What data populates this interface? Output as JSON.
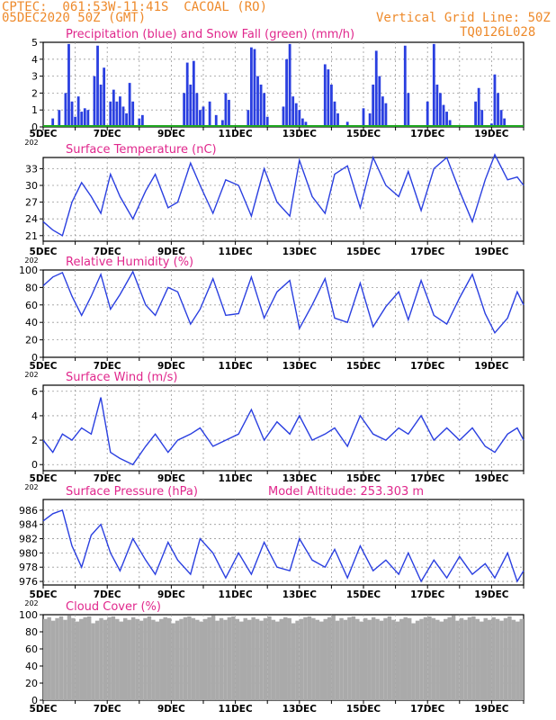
{
  "header": {
    "line1": "CPTEC:  061:53W-11:41S  CACOAL (RO)",
    "line2": "05DEC2020 50Z (GMT)",
    "grid_note": "Vertical Grid Line: 50Z",
    "code": "TQ0126L028"
  },
  "x_axis": {
    "labels": [
      "5DEC",
      "7DEC",
      "9DEC",
      "11DEC",
      "13DEC",
      "15DEC",
      "17DEC",
      "19DEC"
    ],
    "label_days": [
      0,
      2,
      4,
      6,
      8,
      10,
      12,
      14
    ],
    "range_days": [
      0,
      15
    ],
    "stub": "202"
  },
  "colors": {
    "header": "#ee8a2b",
    "title": "#e0278c",
    "series": "#2a3fe0",
    "snow": "#1fa81f",
    "cloud": "#aaaaaa",
    "grid": "#9a9a9a"
  },
  "chart_data": [
    {
      "type": "bar",
      "title": "Precipitation (blue) and Snow Fall (green) (mm/h)",
      "ylim": [
        0,
        5
      ],
      "yticks": [
        0,
        1,
        2,
        3,
        4,
        5
      ],
      "series": [
        {
          "name": "Precipitation",
          "x": [
            0.3,
            0.5,
            0.7,
            0.8,
            0.9,
            1.0,
            1.1,
            1.2,
            1.3,
            1.4,
            1.6,
            1.7,
            1.8,
            1.9,
            2.1,
            2.2,
            2.3,
            2.4,
            2.5,
            2.6,
            2.7,
            2.8,
            3.0,
            3.1,
            4.4,
            4.5,
            4.6,
            4.7,
            4.8,
            4.9,
            5.0,
            5.2,
            5.4,
            5.6,
            5.7,
            5.8,
            6.4,
            6.5,
            6.6,
            6.7,
            6.8,
            6.9,
            7.0,
            7.5,
            7.6,
            7.7,
            7.8,
            7.9,
            8.0,
            8.1,
            8.2,
            8.8,
            8.9,
            9.0,
            9.1,
            9.2,
            9.5,
            10.0,
            10.2,
            10.3,
            10.4,
            10.5,
            10.6,
            10.7,
            11.3,
            11.4,
            12.0,
            12.2,
            12.3,
            12.4,
            12.5,
            12.6,
            12.7,
            13.5,
            13.6,
            13.7,
            14.0,
            14.1,
            14.2,
            14.3,
            14.4
          ],
          "values": [
            0.5,
            1.0,
            2.0,
            4.9,
            1.5,
            0.6,
            1.8,
            0.9,
            1.1,
            1.0,
            3.0,
            4.8,
            2.5,
            3.5,
            1.5,
            2.2,
            1.5,
            1.8,
            1.2,
            0.8,
            2.6,
            1.5,
            0.5,
            0.7,
            2.0,
            3.8,
            2.5,
            3.9,
            2.0,
            1.0,
            1.2,
            1.5,
            0.7,
            0.4,
            2.0,
            1.6,
            1.0,
            4.7,
            4.6,
            3.0,
            2.5,
            2.0,
            0.6,
            1.2,
            4.0,
            4.9,
            1.8,
            1.4,
            1.0,
            0.5,
            0.3,
            3.7,
            3.4,
            2.5,
            1.5,
            0.8,
            0.3,
            1.1,
            0.8,
            2.5,
            4.5,
            3.0,
            1.8,
            1.4,
            4.8,
            2.0,
            1.5,
            4.9,
            2.5,
            2.0,
            1.3,
            0.9,
            0.4,
            1.5,
            2.3,
            1.0,
            0.2,
            3.1,
            2.0,
            1.0,
            0.5
          ]
        },
        {
          "name": "Snow Fall",
          "x": [
            0,
            15
          ],
          "values": [
            0,
            0
          ]
        }
      ]
    },
    {
      "type": "line",
      "title": "Surface Temperature (nC)",
      "ylim": [
        20,
        35
      ],
      "yticks": [
        21,
        24,
        27,
        30,
        33
      ],
      "x": [
        0,
        0.3,
        0.6,
        0.9,
        1.2,
        1.5,
        1.8,
        2.1,
        2.4,
        2.8,
        3.2,
        3.5,
        3.9,
        4.2,
        4.6,
        4.9,
        5.3,
        5.7,
        6.1,
        6.5,
        6.9,
        7.3,
        7.7,
        8.0,
        8.4,
        8.8,
        9.1,
        9.5,
        9.9,
        10.3,
        10.7,
        11.1,
        11.4,
        11.8,
        12.2,
        12.6,
        13.0,
        13.4,
        13.8,
        14.1,
        14.5,
        14.8,
        15.0
      ],
      "series": [
        {
          "values": [
            23.5,
            22.0,
            21.0,
            27.0,
            30.5,
            28.0,
            25.0,
            32.0,
            28.0,
            24.0,
            29.0,
            32.0,
            26.0,
            27.0,
            34.0,
            30.0,
            25.0,
            31.0,
            30.0,
            24.5,
            33.0,
            27.0,
            24.5,
            34.5,
            28.0,
            25.0,
            32.0,
            33.5,
            26.0,
            35.0,
            30.0,
            28.0,
            32.5,
            25.5,
            33.0,
            35.0,
            29.0,
            23.5,
            31.0,
            35.5,
            31.0,
            31.5,
            30.0
          ]
        }
      ]
    },
    {
      "type": "line",
      "title": "Relative Humidity (%)",
      "ylim": [
        0,
        100
      ],
      "yticks": [
        0,
        20,
        40,
        60,
        80,
        100
      ],
      "x": [
        0,
        0.3,
        0.6,
        0.9,
        1.2,
        1.5,
        1.8,
        2.1,
        2.4,
        2.8,
        3.2,
        3.5,
        3.9,
        4.2,
        4.6,
        4.9,
        5.3,
        5.7,
        6.1,
        6.5,
        6.9,
        7.3,
        7.7,
        8.0,
        8.4,
        8.8,
        9.1,
        9.5,
        9.9,
        10.3,
        10.7,
        11.1,
        11.4,
        11.8,
        12.2,
        12.6,
        13.0,
        13.4,
        13.8,
        14.1,
        14.5,
        14.8,
        15.0
      ],
      "series": [
        {
          "values": [
            82.0,
            92.0,
            97.0,
            70.0,
            48.0,
            70.0,
            95.0,
            55.0,
            72.0,
            98.0,
            60.0,
            48.0,
            80.0,
            75.0,
            38.0,
            55.0,
            90.0,
            48.0,
            50.0,
            92.0,
            45.0,
            75.0,
            88.0,
            33.0,
            60.0,
            90.0,
            45.0,
            40.0,
            85.0,
            35.0,
            58.0,
            75.0,
            43.0,
            88.0,
            48.0,
            38.0,
            68.0,
            95.0,
            50.0,
            28.0,
            45.0,
            75.0,
            60.0
          ]
        }
      ]
    },
    {
      "type": "line",
      "title": "Surface Wind (m/s)",
      "ylim": [
        -0.5,
        6.5
      ],
      "yticks": [
        0,
        2,
        4,
        6
      ],
      "x": [
        0,
        0.3,
        0.6,
        0.9,
        1.2,
        1.5,
        1.8,
        2.1,
        2.4,
        2.8,
        3.2,
        3.5,
        3.9,
        4.2,
        4.6,
        4.9,
        5.3,
        5.7,
        6.1,
        6.5,
        6.9,
        7.3,
        7.7,
        8.0,
        8.4,
        8.8,
        9.1,
        9.5,
        9.9,
        10.3,
        10.7,
        11.1,
        11.4,
        11.8,
        12.2,
        12.6,
        13.0,
        13.4,
        13.8,
        14.1,
        14.5,
        14.8,
        15.0
      ],
      "series": [
        {
          "values": [
            2.0,
            1.0,
            2.5,
            2.0,
            3.0,
            2.5,
            5.5,
            1.0,
            0.5,
            0.0,
            1.5,
            2.5,
            1.0,
            2.0,
            2.5,
            3.0,
            1.5,
            2.0,
            2.5,
            4.5,
            2.0,
            3.5,
            2.5,
            4.0,
            2.0,
            2.5,
            3.0,
            1.5,
            4.0,
            2.5,
            2.0,
            3.0,
            2.5,
            4.0,
            2.0,
            3.0,
            2.0,
            3.0,
            1.5,
            1.0,
            2.5,
            3.0,
            2.0
          ]
        }
      ]
    },
    {
      "type": "line",
      "title": "Surface Pressure (hPa)",
      "annotation": "Model Altitude: 253.303 m",
      "ylim": [
        975.5,
        987.5
      ],
      "yticks": [
        976,
        978,
        980,
        982,
        984,
        986
      ],
      "x": [
        0,
        0.3,
        0.6,
        0.9,
        1.2,
        1.5,
        1.8,
        2.1,
        2.4,
        2.8,
        3.2,
        3.5,
        3.9,
        4.2,
        4.6,
        4.9,
        5.3,
        5.7,
        6.1,
        6.5,
        6.9,
        7.3,
        7.7,
        8.0,
        8.4,
        8.8,
        9.1,
        9.5,
        9.9,
        10.3,
        10.7,
        11.1,
        11.4,
        11.8,
        12.2,
        12.6,
        13.0,
        13.4,
        13.8,
        14.1,
        14.5,
        14.8,
        15.0
      ],
      "series": [
        {
          "values": [
            984.5,
            985.5,
            986.0,
            981.0,
            978.0,
            982.5,
            984.0,
            980.0,
            977.5,
            982.0,
            979.0,
            977.0,
            981.5,
            979.0,
            977.0,
            982.0,
            980.0,
            976.5,
            980.0,
            977.0,
            981.5,
            978.0,
            977.5,
            982.0,
            979.0,
            978.0,
            980.5,
            976.5,
            981.0,
            977.5,
            979.0,
            977.0,
            980.0,
            976.0,
            979.0,
            976.5,
            979.5,
            977.0,
            978.5,
            976.5,
            980.0,
            976.0,
            977.5
          ]
        }
      ]
    },
    {
      "type": "bar",
      "title": "Cloud Cover (%)",
      "ylim": [
        0,
        100
      ],
      "yticks": [
        0,
        20,
        40,
        60,
        80,
        100
      ],
      "x_start": 0,
      "x_step": 0.125,
      "values": [
        95,
        97,
        93,
        96,
        98,
        94,
        99,
        96,
        92,
        95,
        97,
        98,
        90,
        93,
        96,
        94,
        97,
        98,
        95,
        92,
        96,
        94,
        97,
        95,
        93,
        96,
        98,
        94,
        92,
        95,
        97,
        96,
        90,
        93,
        95,
        97,
        98,
        96,
        94,
        92,
        95,
        97,
        99,
        93,
        96,
        94,
        97,
        98,
        95,
        92,
        96,
        94,
        97,
        95,
        93,
        96,
        98,
        94,
        92,
        95,
        97,
        96,
        90,
        93,
        95,
        97,
        98,
        96,
        94,
        92,
        95,
        97,
        99,
        93,
        96,
        94,
        97,
        98,
        95,
        92,
        96,
        94,
        97,
        95,
        93,
        96,
        98,
        94,
        92,
        95,
        97,
        96,
        90,
        93,
        95,
        97,
        98,
        96,
        94,
        92,
        95,
        97,
        99,
        93,
        96,
        94,
        97,
        98,
        95,
        92,
        96,
        94,
        97,
        95,
        93,
        96,
        98,
        94,
        92,
        95
      ]
    }
  ]
}
